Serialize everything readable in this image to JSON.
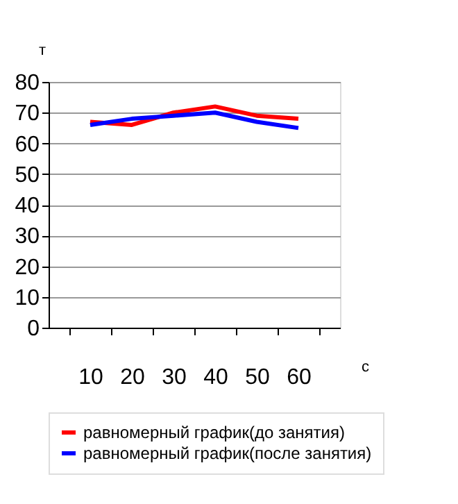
{
  "chart_data": {
    "type": "line",
    "xlabel": "с",
    "ylabel": "т",
    "categories": [
      "10",
      "20",
      "30",
      "40",
      "50",
      "60"
    ],
    "series": [
      {
        "name": "равномерный график(до занятия)",
        "color": "#ff0000",
        "values": [
          67,
          66,
          70,
          72,
          69,
          68
        ]
      },
      {
        "name": "равномерный график(после занятия)",
        "color": "#0000ff",
        "values": [
          66,
          68,
          69,
          70,
          67,
          65
        ]
      }
    ],
    "ylim": [
      0,
      80
    ],
    "yticks": [
      0,
      10,
      20,
      30,
      40,
      50,
      60,
      70,
      80
    ],
    "grid": "y",
    "legend": "bottom",
    "marker": "none",
    "line_style": "solid"
  }
}
